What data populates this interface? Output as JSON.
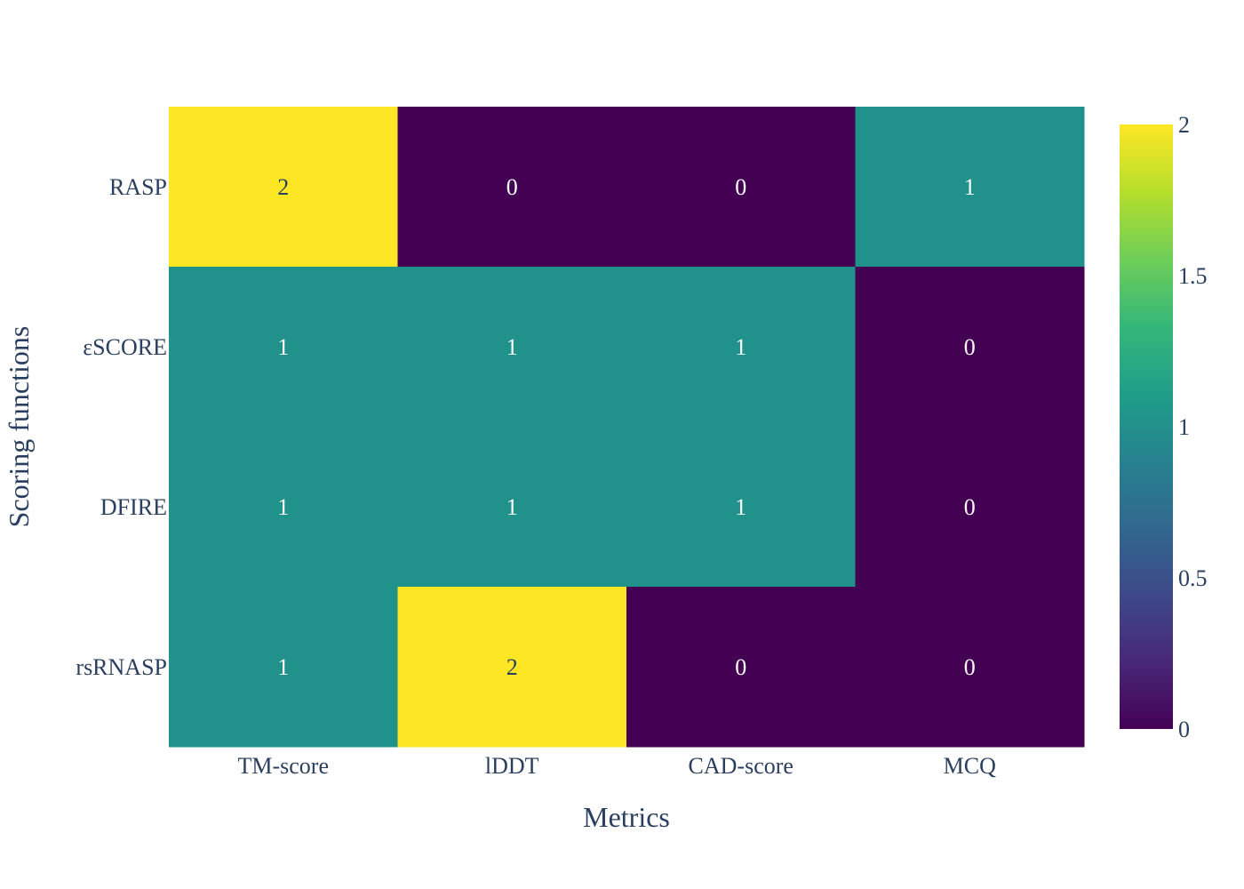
{
  "chart_data": {
    "type": "heatmap",
    "title": "",
    "xlabel": "Metrics",
    "ylabel": "Scoring functions",
    "x": [
      "TM-score",
      "lDDT",
      "CAD-score",
      "MCQ"
    ],
    "y": [
      "RASP",
      "εSCORE",
      "DFIRE",
      "rsRNASP"
    ],
    "z": [
      [
        2,
        0,
        0,
        1
      ],
      [
        1,
        1,
        1,
        0
      ],
      [
        1,
        1,
        1,
        0
      ],
      [
        1,
        2,
        0,
        0
      ]
    ],
    "zlim": [
      0,
      2
    ],
    "colorscale": "viridis",
    "colorbar": {
      "tick_values": [
        0,
        0.5,
        1,
        1.5,
        2
      ],
      "tick_labels": [
        "0",
        "0.5",
        "1",
        "1.5",
        "2"
      ]
    },
    "colors": {
      "low": "#440154",
      "mid": "#21918c",
      "high": "#fde725",
      "text_on_dark": "#ffffff",
      "text_on_light": "#2a3f5f",
      "axis_text": "#2a3f5f"
    }
  }
}
